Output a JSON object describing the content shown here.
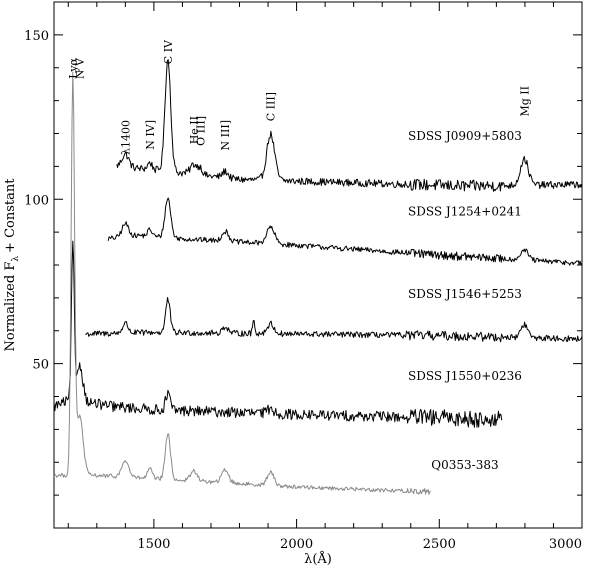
{
  "chart_data": {
    "type": "line",
    "title": "",
    "xlabel": "λ(Å)",
    "ylabel": "Normalized F",
    "ylabel_sub": "λ",
    "ylabel_suffix": "+ Constant",
    "xlim": [
      1150,
      3000
    ],
    "ylim": [
      0,
      160
    ],
    "x_ticks": [
      1500,
      2000,
      2500,
      3000
    ],
    "x_tick_labels": [
      "1500",
      "2000",
      "2500",
      "3000"
    ],
    "y_ticks": [
      50,
      100,
      150
    ],
    "y_tick_labels": [
      "50",
      "100",
      "150"
    ],
    "grid": false,
    "line_labels": [
      {
        "text": "Lyα",
        "x": 1216
      },
      {
        "text": "N V",
        "x": 1240
      },
      {
        "text": "λ1400",
        "x": 1400
      },
      {
        "text": "N IV]",
        "x": 1486
      },
      {
        "text": "C IV",
        "x": 1549
      },
      {
        "text": "He II",
        "x": 1640
      },
      {
        "text": "O III]",
        "x": 1663
      },
      {
        "text": "N III]",
        "x": 1750
      },
      {
        "text": "C III]",
        "x": 1909
      },
      {
        "text": "Mg II",
        "x": 2798
      }
    ],
    "series": [
      {
        "name": "SDSS J0909+5803",
        "color": "#000000",
        "x_range": [
          1370,
          3000
        ],
        "baseline": [
          [
            1370,
            110
          ],
          [
            1500,
            109
          ],
          [
            1800,
            106
          ],
          [
            2200,
            105
          ],
          [
            2600,
            104
          ],
          [
            3000,
            104.5
          ]
        ],
        "lines": [
          [
            1400,
            4,
            12
          ],
          [
            1486,
            2,
            8
          ],
          [
            1549,
            34,
            10
          ],
          [
            1640,
            3,
            12
          ],
          [
            1663,
            2,
            8
          ],
          [
            1750,
            2,
            10
          ],
          [
            1909,
            14,
            14
          ],
          [
            2798,
            8,
            14
          ]
        ],
        "noise": 1.1,
        "label_x": 2590,
        "label_y": 118
      },
      {
        "name": "SDSS J1254+0241",
        "color": "#000000",
        "x_range": [
          1340,
          3000
        ],
        "baseline": [
          [
            1340,
            88
          ],
          [
            1450,
            89
          ],
          [
            1600,
            88
          ],
          [
            1800,
            87
          ],
          [
            2000,
            86
          ],
          [
            2500,
            83
          ],
          [
            3000,
            80.5
          ]
        ],
        "lines": [
          [
            1400,
            4,
            12
          ],
          [
            1486,
            2,
            8
          ],
          [
            1549,
            12,
            10
          ],
          [
            1750,
            3,
            12
          ],
          [
            1909,
            5,
            14
          ],
          [
            2798,
            3,
            14
          ]
        ],
        "noise": 0.8,
        "label_x": 2590,
        "label_y": 95
      },
      {
        "name": "SDSS J1546+5253",
        "color": "#000000",
        "x_range": [
          1260,
          3000
        ],
        "baseline": [
          [
            1260,
            59
          ],
          [
            1500,
            59.5
          ],
          [
            2000,
            59
          ],
          [
            2500,
            58.5
          ],
          [
            3000,
            57.5
          ]
        ],
        "lines": [
          [
            1400,
            3,
            10
          ],
          [
            1549,
            10,
            8
          ],
          [
            1750,
            2,
            10
          ],
          [
            1850,
            4,
            4
          ],
          [
            1909,
            3,
            12
          ],
          [
            2798,
            4,
            12
          ]
        ],
        "noise": 0.9,
        "label_x": 2590,
        "label_y": 70
      },
      {
        "name": "SDSS J1550+0236",
        "color": "#000000",
        "x_range": [
          1150,
          2720
        ],
        "baseline": [
          [
            1150,
            37
          ],
          [
            1210,
            39
          ],
          [
            1350,
            37
          ],
          [
            1500,
            36
          ],
          [
            2000,
            34.5
          ],
          [
            2500,
            33.5
          ],
          [
            2720,
            33
          ]
        ],
        "lines": [
          [
            1216,
            46,
            5
          ],
          [
            1240,
            11,
            11
          ],
          [
            1549,
            5,
            8
          ],
          [
            1909,
            1.5,
            12
          ]
        ],
        "noise": 1.6,
        "label_x": 2590,
        "label_y": 45
      },
      {
        "name": "Q0353-383",
        "color": "#8a8a8a",
        "x_range": [
          1150,
          2470
        ],
        "baseline": [
          [
            1150,
            16
          ],
          [
            1300,
            16
          ],
          [
            1500,
            15
          ],
          [
            2000,
            12.5
          ],
          [
            2470,
            11
          ]
        ],
        "lines": [
          [
            1216,
            120,
            6
          ],
          [
            1240,
            18,
            12
          ],
          [
            1400,
            5,
            12
          ],
          [
            1486,
            3,
            8
          ],
          [
            1549,
            14,
            9
          ],
          [
            1640,
            3,
            12
          ],
          [
            1750,
            4,
            12
          ],
          [
            1909,
            4,
            12
          ]
        ],
        "noise": 0.6,
        "label_x": 2590,
        "label_y": 18
      }
    ]
  }
}
